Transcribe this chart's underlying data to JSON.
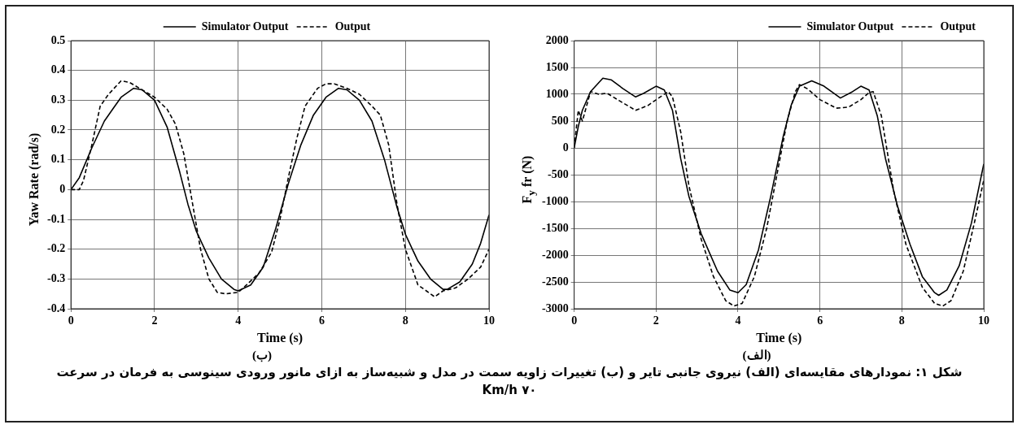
{
  "chart_data": [
    {
      "type": "line",
      "subtitle": "(ب)",
      "xlabel": "Time (s)",
      "ylabel": "Yaw Rate (rad/s)",
      "xlim": [
        0,
        10
      ],
      "xticks": [
        0,
        2,
        4,
        6,
        8,
        10
      ],
      "ylim": [
        -0.4,
        0.5
      ],
      "yticks": [
        -0.4,
        -0.3,
        -0.2,
        -0.1,
        0,
        0.1,
        0.2,
        0.3,
        0.4,
        0.5
      ],
      "grid": true,
      "legend": "top",
      "marker": "none",
      "series": [
        {
          "name": "Simulator Output",
          "color": "#000000",
          "line_style": "solid",
          "x": [
            0,
            0.2,
            0.5,
            0.8,
            1.0,
            1.2,
            1.5,
            1.7,
            2.0,
            2.3,
            2.6,
            2.8,
            3.0,
            3.3,
            3.6,
            3.9,
            4.0,
            4.3,
            4.6,
            4.9,
            5.2,
            5.5,
            5.8,
            6.1,
            6.4,
            6.6,
            6.9,
            7.2,
            7.5,
            7.8,
            8.0,
            8.3,
            8.6,
            8.9,
            9.0,
            9.3,
            9.6,
            9.8,
            10
          ],
          "values": [
            0,
            0.04,
            0.14,
            0.23,
            0.27,
            0.31,
            0.34,
            0.335,
            0.3,
            0.21,
            0.06,
            -0.05,
            -0.14,
            -0.23,
            -0.3,
            -0.335,
            -0.34,
            -0.32,
            -0.26,
            -0.13,
            0.02,
            0.15,
            0.25,
            0.31,
            0.34,
            0.335,
            0.3,
            0.23,
            0.1,
            -0.06,
            -0.15,
            -0.24,
            -0.3,
            -0.335,
            -0.335,
            -0.31,
            -0.25,
            -0.18,
            -0.085
          ]
        },
        {
          "name": "Output",
          "color": "#000000",
          "line_style": "dashed",
          "x": [
            0,
            0.2,
            0.3,
            0.5,
            0.7,
            0.9,
            1.2,
            1.4,
            1.7,
            2.0,
            2.3,
            2.5,
            2.7,
            2.9,
            3.1,
            3.3,
            3.5,
            3.7,
            4.0,
            4.2,
            4.5,
            4.8,
            5.0,
            5.2,
            5.4,
            5.6,
            5.9,
            6.1,
            6.3,
            6.6,
            6.9,
            7.2,
            7.4,
            7.6,
            7.8,
            8.0,
            8.3,
            8.5,
            8.7,
            8.9,
            9.2,
            9.5,
            9.8,
            10
          ],
          "values": [
            0,
            0,
            0.03,
            0.15,
            0.28,
            0.32,
            0.365,
            0.36,
            0.335,
            0.31,
            0.27,
            0.22,
            0.12,
            -0.04,
            -0.2,
            -0.3,
            -0.345,
            -0.35,
            -0.345,
            -0.32,
            -0.28,
            -0.21,
            -0.1,
            0.04,
            0.17,
            0.28,
            0.34,
            0.355,
            0.355,
            0.34,
            0.32,
            0.28,
            0.25,
            0.15,
            -0.05,
            -0.2,
            -0.32,
            -0.34,
            -0.36,
            -0.34,
            -0.33,
            -0.3,
            -0.26,
            -0.2
          ]
        }
      ],
      "annotations": [
        "شکل ۱:  نمودارهای مقایسه‌ای (الف) نیروی جانبی تایر و (ب) تغییرات زاویه سمت  در مدل و شبیه‌ساز به ازای مانور ورودی سینوسی به فرمان در سرعت ۷۰ Km/h"
      ]
    },
    {
      "type": "line",
      "subtitle": "(الف)",
      "xlabel": "Time (s)",
      "ylabel": "F$_{y}$ fr (N)",
      "xlim": [
        0,
        10
      ],
      "xticks": [
        0,
        2,
        4,
        6,
        8,
        10
      ],
      "ylim": [
        -3000,
        2000
      ],
      "yticks": [
        -3000,
        -2500,
        -2000,
        -1500,
        -1000,
        -500,
        0,
        500,
        1000,
        1500,
        2000
      ],
      "grid": true,
      "legend": "top right",
      "marker": "none",
      "series": [
        {
          "name": "Simulator Output",
          "color": "#000000",
          "line_style": "solid",
          "x": [
            0,
            0.1,
            0.2,
            0.4,
            0.7,
            0.9,
            1.2,
            1.5,
            1.7,
            2.0,
            2.2,
            2.4,
            2.6,
            2.8,
            3.1,
            3.5,
            3.8,
            4.0,
            4.2,
            4.5,
            4.8,
            5.1,
            5.3,
            5.5,
            5.8,
            6.1,
            6.5,
            6.8,
            7.0,
            7.2,
            7.4,
            7.6,
            7.9,
            8.2,
            8.5,
            8.8,
            8.9,
            9.1,
            9.4,
            9.7,
            10
          ],
          "values": [
            0,
            400,
            700,
            1050,
            1300,
            1270,
            1100,
            950,
            1020,
            1150,
            1080,
            700,
            -200,
            -900,
            -1600,
            -2300,
            -2650,
            -2700,
            -2550,
            -1900,
            -900,
            200,
            800,
            1150,
            1250,
            1150,
            930,
            1050,
            1150,
            1080,
            600,
            -200,
            -1100,
            -1800,
            -2400,
            -2700,
            -2750,
            -2650,
            -2200,
            -1400,
            -300
          ]
        },
        {
          "name": "Output",
          "color": "#000000",
          "line_style": "dashed",
          "x": [
            0,
            0.1,
            0.2,
            0.4,
            0.6,
            0.8,
            1.1,
            1.5,
            1.8,
            2.1,
            2.3,
            2.4,
            2.6,
            2.8,
            3.1,
            3.4,
            3.7,
            3.9,
            4.1,
            4.4,
            4.7,
            5.0,
            5.2,
            5.4,
            5.5,
            5.7,
            6.0,
            6.4,
            6.7,
            7.0,
            7.2,
            7.3,
            7.5,
            7.8,
            8.1,
            8.5,
            8.8,
            9.0,
            9.2,
            9.5,
            9.8,
            10
          ],
          "values": [
            0,
            700,
            500,
            1050,
            1000,
            1020,
            880,
            700,
            790,
            950,
            1050,
            950,
            300,
            -700,
            -1700,
            -2400,
            -2850,
            -2950,
            -2900,
            -2400,
            -1500,
            -300,
            500,
            1050,
            1180,
            1100,
            900,
            740,
            760,
            900,
            1030,
            1050,
            600,
            -800,
            -1800,
            -2600,
            -2900,
            -2950,
            -2850,
            -2300,
            -1300,
            -600
          ]
        }
      ]
    }
  ]
}
